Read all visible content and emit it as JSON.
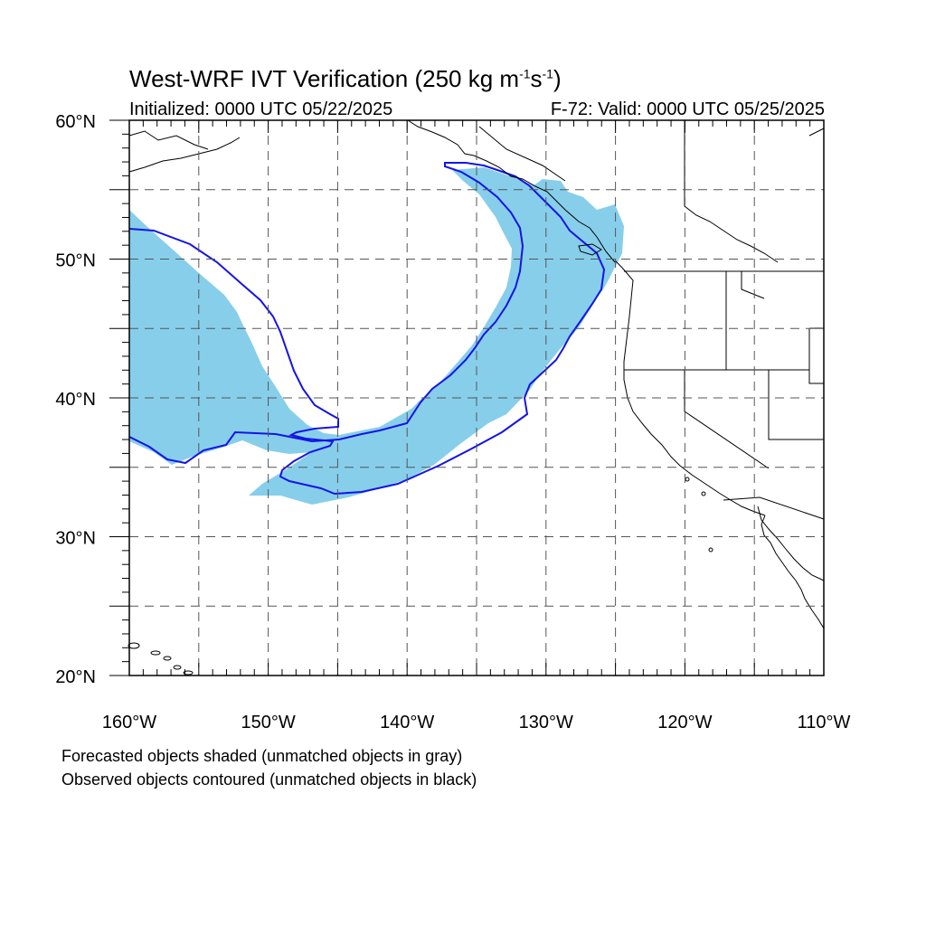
{
  "title": {
    "main": "West-WRF IVT Verification",
    "units_open": "(250 kg m",
    "exp1": "-1",
    "units_mid": "s",
    "exp2": "-1",
    "units_close": ")"
  },
  "initialized": "Initialized: 0000 UTC 05/22/2025",
  "valid": "F-72: Valid: 0000 UTC 05/25/2025",
  "footnotes": [
    "Forecasted objects shaded (unmatched objects in gray)",
    "Observed objects contoured (unmatched objects in black)"
  ],
  "map": {
    "lon_range": [
      -160,
      -110
    ],
    "lat_range": [
      20,
      60
    ],
    "lon_labels": [
      "160°W",
      "150°W",
      "140°W",
      "130°W",
      "120°W",
      "110°W"
    ],
    "lat_labels": [
      "20°N",
      "30°N",
      "40°N",
      "50°N",
      "60°N"
    ],
    "gridlines": "dashed, every 5°",
    "colors": {
      "forecast_fill": "#87ceeb",
      "observed_contour": "#1414e6",
      "coastline": "#000000",
      "grid": "#555555"
    }
  }
}
